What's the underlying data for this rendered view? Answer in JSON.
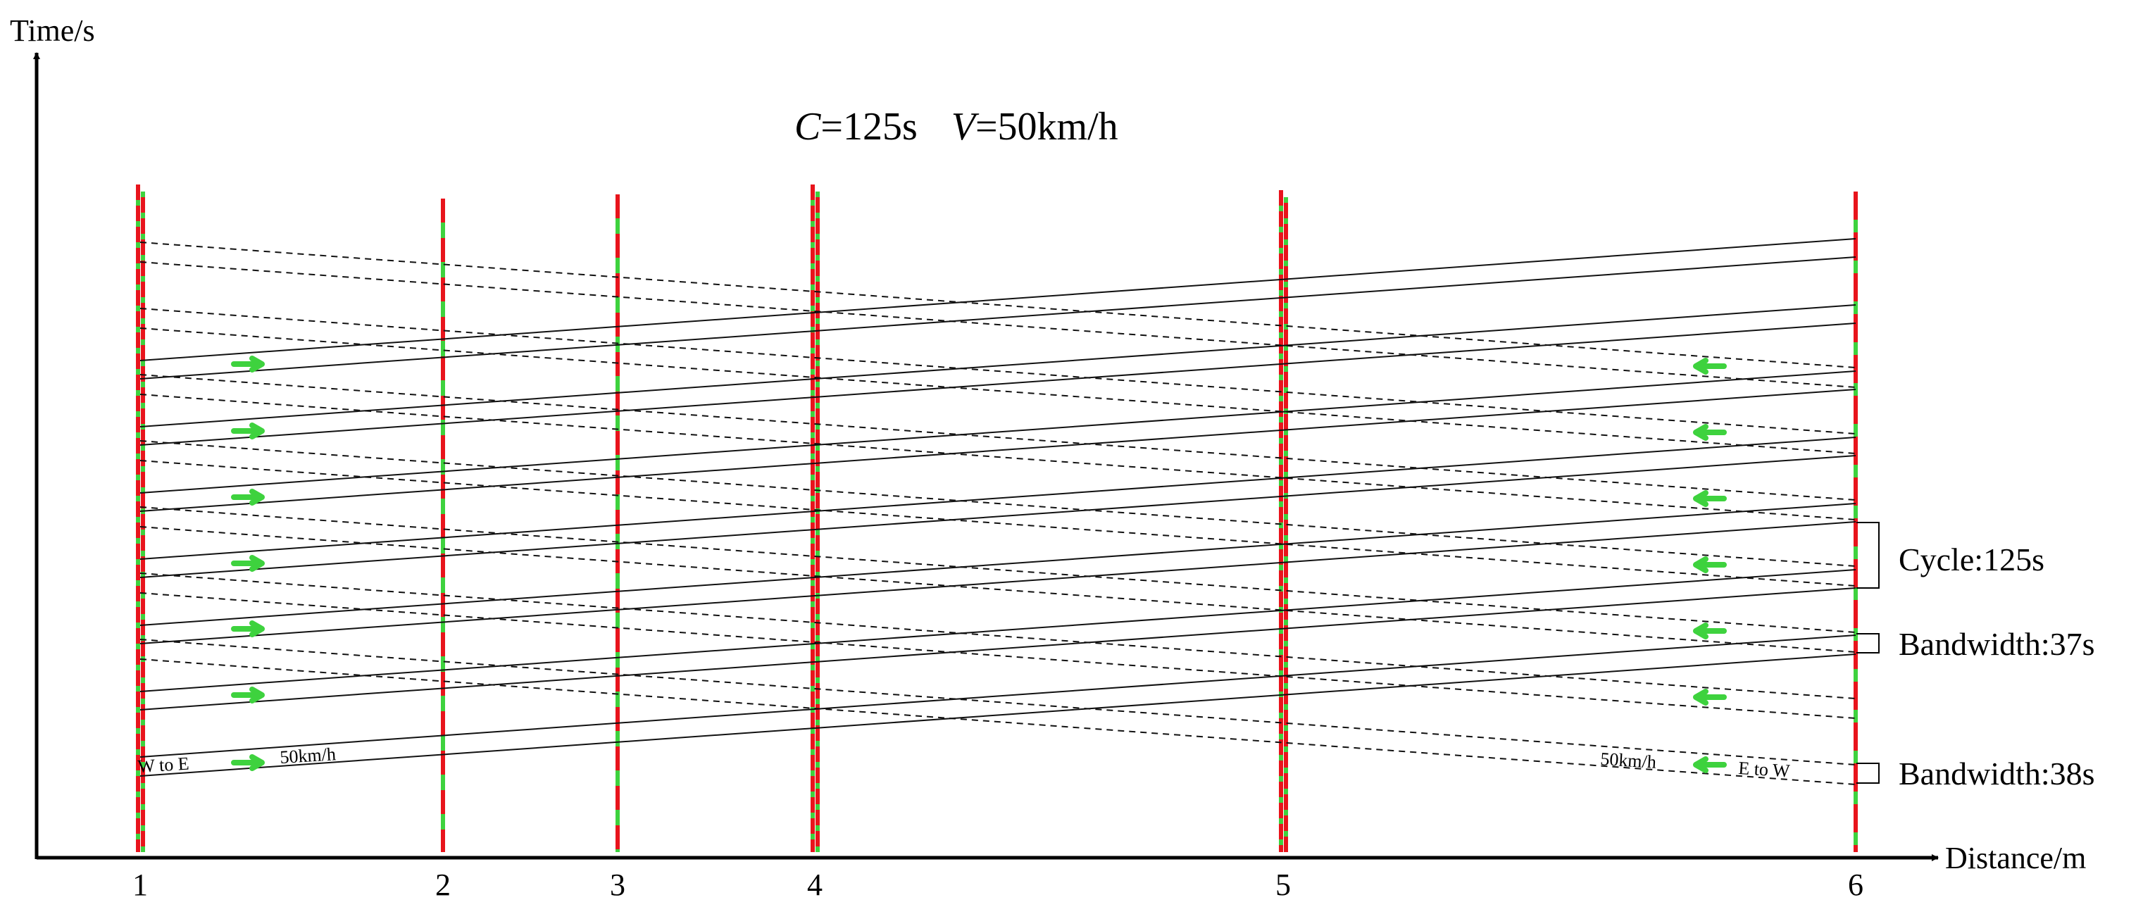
{
  "chart_data": {
    "type": "line",
    "title_c_var": "C",
    "title_c_val": "=125s",
    "title_v_var": "V",
    "title_v_val": "=50km/h",
    "xlabel": "Distance/m",
    "ylabel": "Time/s",
    "intersections": [
      "1",
      "2",
      "3",
      "4",
      "5",
      "6"
    ],
    "direction_we": "W to E",
    "direction_ew": "E to W",
    "speed_we": "50km/h",
    "speed_ew": "50km/h",
    "annotations": {
      "cycle": "Cycle:125s",
      "bandwidth_we": "Bandwidth:37s",
      "bandwidth_ew": "Bandwidth:38s"
    },
    "colors": {
      "red": "#e8141c",
      "green": "#3ed23e",
      "line": "#111111"
    }
  }
}
